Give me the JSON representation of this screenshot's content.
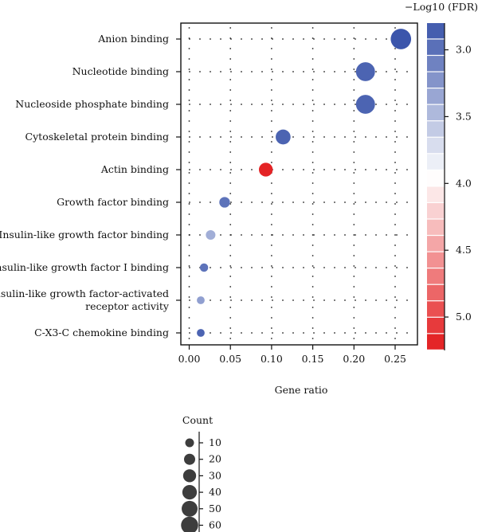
{
  "chart_data": {
    "type": "scatter",
    "xlabel": "Gene ratio",
    "x_ticks": [
      "0.00",
      "0.05",
      "0.10",
      "0.15",
      "0.20",
      "0.25"
    ],
    "xlim": [
      -0.01,
      0.275
    ],
    "categories": [
      "Anion binding",
      "Nucleotide binding",
      "Nucleoside phosphate binding",
      "Cytoskeletal protein binding",
      "Actin binding",
      "Growth  factor binding",
      "Insulin-like growth factor binding",
      "Insulin-like growth factor I binding",
      [
        "Insulin-like growth factor-activated",
        "receptor activity"
      ],
      "C-X3-C chemokine binding"
    ],
    "points": [
      {
        "term": "Anion binding",
        "gene_ratio": 0.257,
        "neg_log10_fdr": 2.8,
        "count": 62
      },
      {
        "term": "Nucleotide binding",
        "gene_ratio": 0.214,
        "neg_log10_fdr": 2.9,
        "count": 52
      },
      {
        "term": "Nucleoside phosphate binding",
        "gene_ratio": 0.214,
        "neg_log10_fdr": 2.9,
        "count": 52
      },
      {
        "term": "Cytoskeletal protein binding",
        "gene_ratio": 0.114,
        "neg_log10_fdr": 2.9,
        "count": 28
      },
      {
        "term": "Actin binding",
        "gene_ratio": 0.093,
        "neg_log10_fdr": 5.2,
        "count": 23
      },
      {
        "term": "Growth  factor binding",
        "gene_ratio": 0.043,
        "neg_log10_fdr": 3.0,
        "count": 11
      },
      {
        "term": "Insulin-like growth factor binding",
        "gene_ratio": 0.026,
        "neg_log10_fdr": 3.4,
        "count": 8
      },
      {
        "term": "Insulin-like growth factor I binding",
        "gene_ratio": 0.018,
        "neg_log10_fdr": 3.0,
        "count": 5
      },
      {
        "term": "Insulin-like growth factor-activated receptor activity",
        "gene_ratio": 0.014,
        "neg_log10_fdr": 3.3,
        "count": 4
      },
      {
        "term": "C-X3-C chemokine binding",
        "gene_ratio": 0.014,
        "neg_log10_fdr": 2.9,
        "count": 4
      }
    ],
    "color_legend": {
      "title": "−Log10 (FDR)",
      "ticks": [
        "3.0",
        "3.5",
        "4.0",
        "4.5",
        "5.0"
      ],
      "range": [
        2.8,
        5.25
      ],
      "low_color": "#3b55ab",
      "mid_color": "#ffffff",
      "high_color": "#e31a1c"
    },
    "size_legend": {
      "title": "Count",
      "values": [
        10,
        20,
        30,
        40,
        50,
        60
      ],
      "dot_color": "#3d3d3d"
    },
    "grid": "dotted"
  }
}
